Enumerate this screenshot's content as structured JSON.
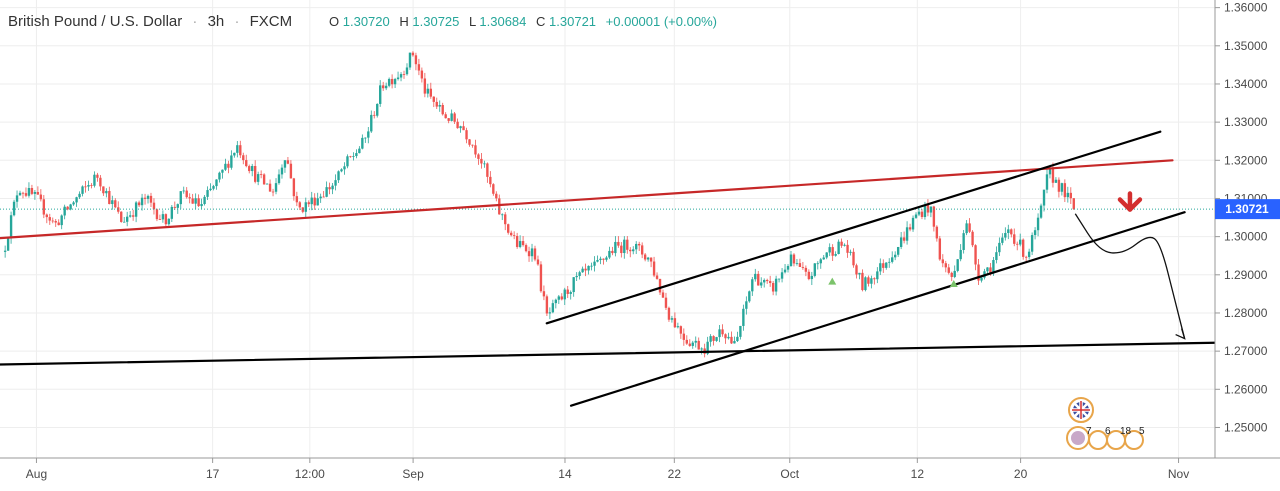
{
  "header": {
    "symbol": "British Pound / U.S. Dollar",
    "interval": "3h",
    "exchange": "FXCM",
    "open_label": "O",
    "open": "1.30720",
    "high_label": "H",
    "high": "1.30725",
    "low_label": "L",
    "low": "1.30684",
    "close_label": "C",
    "close": "1.30721",
    "change": "+0.00001 (+0.00%)",
    "sep": "·"
  },
  "price_label": "1.30721",
  "colors": {
    "up": "#26a69a",
    "down": "#ef5350",
    "resistance": "#c62828",
    "channel": "#000000",
    "arrow": "#d32f2f",
    "price_badge": "#2962ff",
    "axis_text": "#4a4a4a",
    "grid": "#eeeeee",
    "header_value": "#26a69a"
  },
  "event_markers": {
    "top_icon": "uk-flag-icon",
    "labels": [
      "7",
      "6",
      "18",
      "5"
    ]
  },
  "chart_data": {
    "type": "candlestick",
    "title": "British Pound / U.S. Dollar · 3h · FXCM",
    "ylim": [
      1.242,
      1.362
    ],
    "y_ticks": [
      "1.36000",
      "1.35000",
      "1.34000",
      "1.33000",
      "1.32000",
      "1.31000",
      "1.30000",
      "1.29000",
      "1.28000",
      "1.27000",
      "1.26000",
      "1.25000"
    ],
    "y_tick_values": [
      1.36,
      1.35,
      1.34,
      1.33,
      1.32,
      1.31,
      1.3,
      1.29,
      1.28,
      1.27,
      1.26,
      1.25
    ],
    "x_range": [
      0,
      100
    ],
    "x_ticks": [
      {
        "label": "Aug",
        "x": 3
      },
      {
        "label": "17",
        "x": 17.5
      },
      {
        "label": "12:00",
        "x": 25.5
      },
      {
        "label": "Sep",
        "x": 34
      },
      {
        "label": "14",
        "x": 46.5
      },
      {
        "label": "22",
        "x": 55.5
      },
      {
        "label": "Oct",
        "x": 65
      },
      {
        "label": "12",
        "x": 75.5
      },
      {
        "label": "20",
        "x": 84
      },
      {
        "label": "Nov",
        "x": 97
      }
    ],
    "last_price": 1.30721,
    "price_path": [
      {
        "x": 0.3,
        "y": 1.296
      },
      {
        "x": 1.5,
        "y": 1.313
      },
      {
        "x": 3,
        "y": 1.31
      },
      {
        "x": 4.5,
        "y": 1.303
      },
      {
        "x": 6,
        "y": 1.309
      },
      {
        "x": 8,
        "y": 1.316
      },
      {
        "x": 10,
        "y": 1.304
      },
      {
        "x": 12,
        "y": 1.31
      },
      {
        "x": 13.5,
        "y": 1.304
      },
      {
        "x": 15,
        "y": 1.311
      },
      {
        "x": 16.5,
        "y": 1.308
      },
      {
        "x": 18,
        "y": 1.315
      },
      {
        "x": 19.5,
        "y": 1.324
      },
      {
        "x": 21,
        "y": 1.316
      },
      {
        "x": 22.5,
        "y": 1.312
      },
      {
        "x": 23.5,
        "y": 1.322
      },
      {
        "x": 24.5,
        "y": 1.307
      },
      {
        "x": 26,
        "y": 1.31
      },
      {
        "x": 27.5,
        "y": 1.314
      },
      {
        "x": 28.5,
        "y": 1.319
      },
      {
        "x": 30,
        "y": 1.325
      },
      {
        "x": 31.5,
        "y": 1.34
      },
      {
        "x": 33,
        "y": 1.343
      },
      {
        "x": 34,
        "y": 1.348
      },
      {
        "x": 35,
        "y": 1.338
      },
      {
        "x": 36.5,
        "y": 1.332
      },
      {
        "x": 38,
        "y": 1.329
      },
      {
        "x": 39.5,
        "y": 1.321
      },
      {
        "x": 41,
        "y": 1.307
      },
      {
        "x": 42.5,
        "y": 1.298
      },
      {
        "x": 44,
        "y": 1.296
      },
      {
        "x": 45,
        "y": 1.279
      },
      {
        "x": 46,
        "y": 1.283
      },
      {
        "x": 47.5,
        "y": 1.289
      },
      {
        "x": 49,
        "y": 1.292
      },
      {
        "x": 50.5,
        "y": 1.297
      },
      {
        "x": 52,
        "y": 1.298
      },
      {
        "x": 53.5,
        "y": 1.294
      },
      {
        "x": 55,
        "y": 1.28
      },
      {
        "x": 56.5,
        "y": 1.273
      },
      {
        "x": 58,
        "y": 1.271
      },
      {
        "x": 59.5,
        "y": 1.276
      },
      {
        "x": 60.5,
        "y": 1.271
      },
      {
        "x": 62,
        "y": 1.29
      },
      {
        "x": 63.5,
        "y": 1.286
      },
      {
        "x": 65,
        "y": 1.294
      },
      {
        "x": 66.5,
        "y": 1.289
      },
      {
        "x": 68,
        "y": 1.296
      },
      {
        "x": 69.5,
        "y": 1.298
      },
      {
        "x": 71,
        "y": 1.287
      },
      {
        "x": 72.5,
        "y": 1.292
      },
      {
        "x": 74,
        "y": 1.298
      },
      {
        "x": 75.5,
        "y": 1.306
      },
      {
        "x": 76.5,
        "y": 1.308
      },
      {
        "x": 77.5,
        "y": 1.293
      },
      {
        "x": 78.5,
        "y": 1.289
      },
      {
        "x": 79.5,
        "y": 1.305
      },
      {
        "x": 80.5,
        "y": 1.29
      },
      {
        "x": 81.5,
        "y": 1.292
      },
      {
        "x": 83,
        "y": 1.302
      },
      {
        "x": 84.5,
        "y": 1.295
      },
      {
        "x": 85.5,
        "y": 1.304
      },
      {
        "x": 86.3,
        "y": 1.317
      },
      {
        "x": 87.5,
        "y": 1.312
      },
      {
        "x": 88.5,
        "y": 1.307
      }
    ],
    "trend_lines": [
      {
        "name": "resistance-line",
        "x1": 0,
        "y1": 1.2996,
        "x2": 96.5,
        "y2": 1.32,
        "color": "#c62828"
      },
      {
        "name": "channel-upper-line",
        "x1": 45,
        "y1": 1.2773,
        "x2": 95.5,
        "y2": 1.3275,
        "color": "#000000"
      },
      {
        "name": "channel-lower-line",
        "x1": 47,
        "y1": 1.2557,
        "x2": 97.5,
        "y2": 1.3064,
        "color": "#000000"
      },
      {
        "name": "support-line",
        "x1": 0,
        "y1": 1.2665,
        "x2": 100,
        "y2": 1.2722,
        "color": "#000000"
      }
    ],
    "projection_path": [
      {
        "x": 88.5,
        "y": 1.306
      },
      {
        "x": 90.5,
        "y": 1.296
      },
      {
        "x": 92.5,
        "y": 1.2955
      },
      {
        "x": 94.5,
        "y": 1.3005
      },
      {
        "x": 95.5,
        "y": 1.2985
      },
      {
        "x": 96.8,
        "y": 1.282
      },
      {
        "x": 97.5,
        "y": 1.2733
      }
    ],
    "signal_marks": [
      {
        "x": 68.5,
        "y": 1.2882,
        "kind": "up-triangle"
      },
      {
        "x": 78.5,
        "y": 1.2876,
        "kind": "up-triangle"
      }
    ],
    "sell_arrow": {
      "x": 93,
      "y": 1.3071
    }
  }
}
